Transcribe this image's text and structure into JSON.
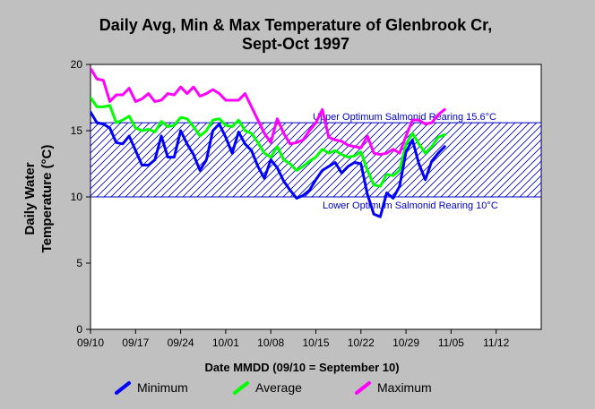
{
  "chart_data": {
    "type": "line",
    "title_line1": "Daily Avg, Min & Max Temperature of Glenbrook Cr,",
    "title_line2": "Sept-Oct 1997",
    "ylabel_line1": "Daily Water",
    "ylabel_line2": "Temperature (°C)",
    "xlabel": "Date MMDD (09/10 = September 10)",
    "ylim": [
      0,
      20
    ],
    "y_ticks": [
      "0",
      "5",
      "10",
      "15",
      "20"
    ],
    "x_day_range": [
      0,
      70
    ],
    "x_ticks": [
      {
        "label": "09/10",
        "day": 0
      },
      {
        "label": "09/17",
        "day": 7
      },
      {
        "label": "09/24",
        "day": 14
      },
      {
        "label": "10/01",
        "day": 21
      },
      {
        "label": "10/08",
        "day": 28
      },
      {
        "label": "10/15",
        "day": 35
      },
      {
        "label": "10/22",
        "day": 42
      },
      {
        "label": "10/29",
        "day": 49
      },
      {
        "label": "11/05",
        "day": 56
      },
      {
        "label": "11/12",
        "day": 63
      }
    ],
    "optimum_band": {
      "upper": 15.6,
      "lower": 10,
      "upper_label": "Upper Optimum Salmonid Rearing 15.6°C",
      "lower_label": "Lower Optimum Salmonid Rearing 10°C",
      "color": "#0000c0"
    },
    "series": [
      {
        "name": "Minimum",
        "color": "#0000ff",
        "values": [
          16.4,
          15.6,
          15.5,
          15.2,
          14.1,
          14.0,
          14.6,
          13.5,
          12.4,
          12.4,
          12.8,
          14.6,
          13.0,
          13.0,
          15.0,
          14.0,
          13.2,
          12.0,
          12.8,
          15.0,
          15.5,
          14.5,
          13.3,
          14.9,
          14.0,
          13.5,
          12.3,
          11.4,
          12.8,
          12.2,
          11.2,
          10.5,
          9.9,
          10.1,
          10.5,
          11.3,
          12.0,
          12.3,
          12.6,
          11.8,
          12.3,
          12.6,
          12.5,
          10.2,
          8.7,
          8.5,
          10.3,
          9.9,
          10.8,
          13.4,
          14.3,
          12.5,
          11.3,
          12.7,
          13.3,
          13.8
        ]
      },
      {
        "name": "Average",
        "color": "#00ff00",
        "values": [
          17.5,
          16.8,
          16.8,
          16.9,
          15.6,
          15.8,
          16.1,
          15.2,
          15.0,
          15.1,
          14.9,
          15.7,
          15.3,
          15.4,
          16.0,
          15.9,
          15.3,
          14.6,
          15.0,
          15.8,
          15.9,
          15.4,
          15.3,
          15.8,
          15.0,
          14.8,
          14.1,
          13.3,
          13.0,
          13.8,
          12.8,
          12.5,
          12.0,
          12.3,
          12.7,
          13.0,
          13.6,
          13.3,
          13.5,
          13.2,
          13.0,
          13.1,
          13.4,
          12.0,
          10.9,
          10.8,
          11.7,
          11.6,
          12.0,
          14.0,
          14.8,
          14.0,
          13.3,
          13.8,
          14.5,
          14.7
        ]
      },
      {
        "name": "Maximum",
        "color": "#ff00ff",
        "values": [
          19.7,
          18.9,
          18.8,
          17.2,
          17.7,
          17.7,
          18.2,
          17.2,
          17.4,
          17.8,
          17.2,
          17.3,
          17.8,
          17.7,
          18.3,
          17.8,
          18.3,
          17.6,
          17.8,
          18.1,
          17.8,
          17.3,
          17.3,
          17.3,
          17.8,
          16.8,
          15.8,
          14.8,
          14.1,
          15.9,
          14.8,
          14.0,
          14.1,
          14.3,
          15.0,
          15.6,
          16.6,
          14.5,
          14.3,
          14.2,
          13.9,
          13.8,
          13.7,
          14.6,
          13.3,
          13.2,
          13.3,
          13.6,
          13.3,
          14.6,
          15.8,
          15.8,
          15.5,
          15.6,
          16.2,
          16.6
        ]
      }
    ]
  }
}
